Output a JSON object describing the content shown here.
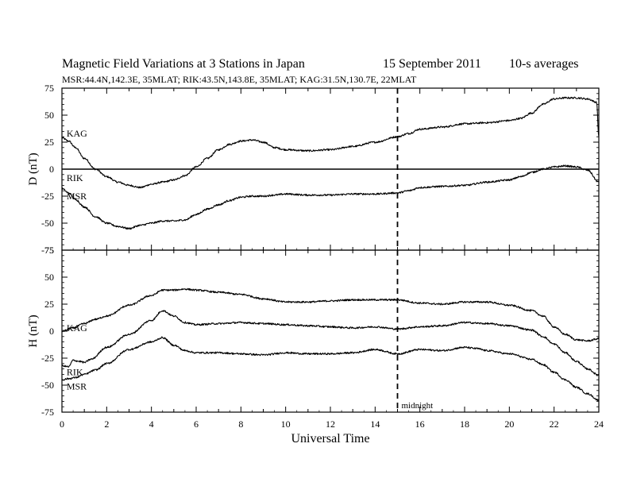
{
  "header": {
    "title": "Magnetic Field Variations at 3 Stations in Japan",
    "date": "15 September 2011",
    "averaging": "10-s averages",
    "stations_line": "MSR:44.4N,142.3E, 35MLAT;  RIK:43.5N,143.8E, 35MLAT;  KAG:31.5N,130.7E, 22MLAT"
  },
  "colors": {
    "axis": "#000000",
    "trace": "#000000",
    "background": "#ffffff"
  },
  "chart_data": [
    {
      "type": "line",
      "panel": "top",
      "ylabel": "D (nT)",
      "xlim": [
        0,
        24
      ],
      "ylim": [
        -75,
        75
      ],
      "yticks": [
        75,
        50,
        25,
        0,
        -25,
        -50,
        -75
      ],
      "reference_line_y": 0,
      "series": [
        {
          "name": "KAG",
          "x": [
            0,
            0.3,
            0.6,
            1,
            1.5,
            2,
            2.5,
            3,
            3.5,
            4,
            4.5,
            5,
            5.5,
            6,
            6.5,
            7,
            7.5,
            8,
            8.5,
            9,
            9.5,
            10,
            11,
            12,
            13,
            14,
            15,
            15.5,
            16,
            17,
            18,
            19,
            20,
            20.5,
            21,
            21.5,
            22,
            22.5,
            23,
            23.5,
            23.9,
            24
          ],
          "y": [
            29,
            26,
            20,
            10,
            0,
            -7,
            -12,
            -15,
            -17,
            -14,
            -12,
            -10,
            -6,
            2,
            10,
            18,
            23,
            26,
            27,
            25,
            20,
            18,
            17,
            18,
            21,
            25,
            30,
            33,
            37,
            39,
            42,
            43,
            45,
            47,
            52,
            60,
            65,
            66,
            66,
            65,
            62,
            30
          ]
        },
        {
          "name": "RIK",
          "x": [
            24
          ],
          "y": [
            0
          ]
        },
        {
          "name": "MSR",
          "x": [
            0,
            0.3,
            0.6,
            1,
            1.5,
            2,
            2.5,
            3,
            3.5,
            4,
            4.5,
            5,
            5.5,
            6,
            6.5,
            7,
            7.5,
            8,
            8.5,
            9,
            9.5,
            10,
            11,
            12,
            13,
            14,
            15,
            15.5,
            16,
            17,
            18,
            19,
            20,
            20.5,
            21,
            21.5,
            22,
            22.5,
            23,
            23.5,
            24
          ],
          "y": [
            -18,
            -22,
            -28,
            -35,
            -44,
            -50,
            -53,
            -55,
            -52,
            -50,
            -48,
            -48,
            -47,
            -42,
            -37,
            -33,
            -29,
            -26,
            -25,
            -25,
            -24,
            -23,
            -24,
            -24,
            -23,
            -23,
            -22,
            -20,
            -17,
            -16,
            -15,
            -12,
            -10,
            -7,
            -3,
            0,
            2,
            3,
            2,
            -1,
            -12
          ]
        }
      ],
      "labels": [
        {
          "text": "KAG",
          "x": 0.1,
          "y": 33
        },
        {
          "text": "RIK",
          "x": 0.1,
          "y": -8
        },
        {
          "text": "MSR",
          "x": 0.1,
          "y": -25
        }
      ]
    },
    {
      "type": "line",
      "panel": "bottom",
      "ylabel": "H (nT)",
      "xlabel": "Universal Time",
      "xlim": [
        0,
        24
      ],
      "ylim": [
        -75,
        75
      ],
      "yticks": [
        75,
        50,
        25,
        0,
        -25,
        -50,
        -75
      ],
      "xticks": [
        0,
        2,
        4,
        6,
        8,
        10,
        12,
        14,
        16,
        18,
        20,
        22,
        24
      ],
      "vline_x": 15,
      "vline_label": "midnight",
      "series": [
        {
          "name": "KAG",
          "x": [
            0,
            0.5,
            1,
            1.5,
            2,
            3,
            4,
            4.5,
            5,
            5.5,
            6,
            7,
            8,
            9,
            10,
            11,
            12,
            13,
            14,
            15,
            16,
            17,
            18,
            19,
            20,
            21,
            21.5,
            22,
            22.5,
            23,
            23.5,
            24
          ],
          "y": [
            0,
            3,
            7,
            11,
            14,
            24,
            33,
            38,
            38,
            39,
            38,
            36,
            34,
            30,
            27,
            27,
            28,
            29,
            29,
            29,
            26,
            25,
            27,
            27,
            24,
            19,
            14,
            4,
            -3,
            -8,
            -9,
            -7
          ]
        },
        {
          "name": "RIK",
          "x": [
            0,
            0.3,
            0.5,
            0.8,
            1,
            1.3,
            2,
            3,
            4,
            4.5,
            5,
            5.5,
            6,
            7,
            8,
            9,
            10,
            11,
            12,
            13,
            14,
            15,
            16,
            17,
            18,
            19,
            20,
            21,
            21.5,
            22,
            22.5,
            23,
            23.5,
            24
          ],
          "y": [
            -32,
            -33,
            -27,
            -28,
            -29,
            -26,
            -15,
            -3,
            10,
            19,
            14,
            8,
            6,
            7,
            8,
            7,
            6,
            5,
            4,
            3,
            4,
            2,
            4,
            5,
            8,
            7,
            5,
            1,
            -5,
            -12,
            -20,
            -28,
            -35,
            -41
          ]
        },
        {
          "name": "MSR",
          "x": [
            0,
            0.3,
            0.6,
            1,
            1.5,
            2,
            3,
            4,
            4.5,
            5,
            5.5,
            6,
            7,
            8,
            9,
            10,
            11,
            12,
            13,
            14,
            15,
            16,
            17,
            18,
            18.5,
            19,
            20,
            21,
            21.5,
            22,
            22.5,
            23,
            23.5,
            24
          ],
          "y": [
            -45,
            -44,
            -43,
            -40,
            -36,
            -30,
            -17,
            -10,
            -6,
            -13,
            -18,
            -20,
            -20,
            -21,
            -22,
            -20,
            -21,
            -21,
            -20,
            -17,
            -21,
            -17,
            -18,
            -15,
            -16,
            -18,
            -21,
            -26,
            -31,
            -38,
            -45,
            -52,
            -58,
            -64
          ]
        }
      ],
      "labels": [
        {
          "text": "KAG",
          "x": 0.1,
          "y": 3
        },
        {
          "text": "RIK",
          "x": 0.1,
          "y": -38
        },
        {
          "text": "MSR",
          "x": 0.1,
          "y": -51
        }
      ]
    }
  ]
}
